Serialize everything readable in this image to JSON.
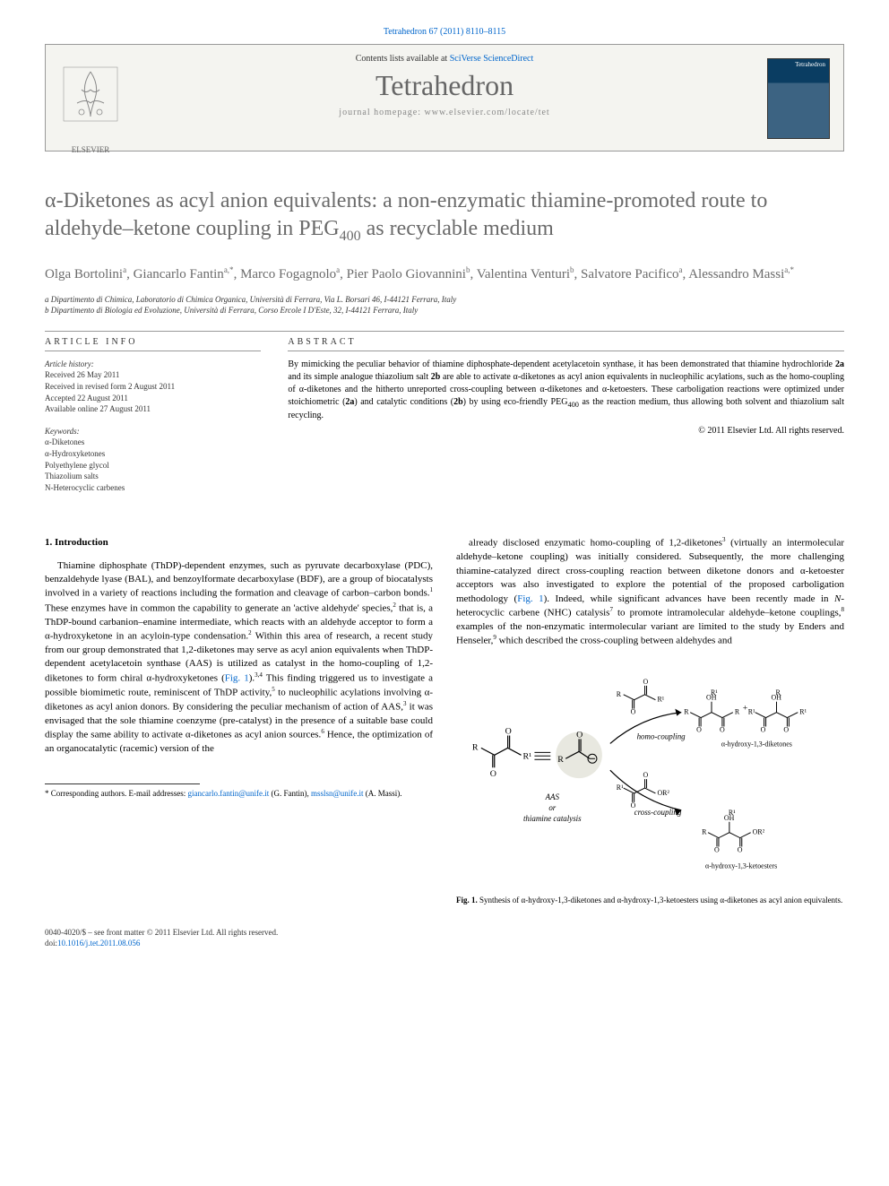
{
  "citation": "Tetrahedron 67 (2011) 8110–8115",
  "header": {
    "contents_prefix": "Contents lists available at ",
    "contents_link": "SciVerse ScienceDirect",
    "journal_name": "Tetrahedron",
    "homepage_prefix": "journal homepage: ",
    "homepage_url": "www.elsevier.com/locate/tet",
    "publisher_name": "ELSEVIER",
    "thumb_label": "Tetrahedron"
  },
  "title_html": "α-Diketones as acyl anion equivalents: a non-enzymatic thiamine-promoted route to aldehyde–ketone coupling in PEG<sub>400</sub> as recyclable medium",
  "authors_html": "Olga Bortolini<span class='sup'>a</span>, Giancarlo Fantin<span class='sup'>a,*</span>, Marco Fogagnolo<span class='sup'>a</span>, Pier Paolo Giovannini<span class='sup'>b</span>, Valentina Venturi<span class='sup'>b</span>, Salvatore Pacifico<span class='sup'>a</span>, Alessandro Massi<span class='sup'>a,*</span>",
  "affiliations": [
    "a Dipartimento di Chimica, Laboratorio di Chimica Organica, Università di Ferrara, Via L. Borsari 46, I-44121 Ferrara, Italy",
    "b Dipartimento di Biologia ed Evoluzione, Università di Ferrara, Corso Ercole I D'Este, 32, I-44121 Ferrara, Italy"
  ],
  "info_head": "ARTICLE INFO",
  "abstract_head": "ABSTRACT",
  "history": {
    "label": "Article history:",
    "lines": [
      "Received 26 May 2011",
      "Received in revised form 2 August 2011",
      "Accepted 22 August 2011",
      "Available online 27 August 2011"
    ]
  },
  "keywords": {
    "label": "Keywords:",
    "lines": [
      "α-Diketones",
      "α-Hydroxyketones",
      "Polyethylene glycol",
      "Thiazolium salts",
      "N-Heterocyclic carbenes"
    ]
  },
  "abstract_html": "By mimicking the peculiar behavior of thiamine diphosphate-dependent acetylacetoin synthase, it has been demonstrated that thiamine hydrochloride <b>2a</b> and its simple analogue thiazolium salt <b>2b</b> are able to activate α-diketones as acyl anion equivalents in nucleophilic acylations, such as the homo-coupling of α-diketones and the hitherto unreported cross-coupling between α-diketones and α-ketoesters. These carboligation reactions were optimized under stoichiometric (<b>2a</b>) and catalytic conditions (<b>2b</b>) by using eco-friendly PEG<sub>400</sub> as the reaction medium, thus allowing both solvent and thiazolium salt recycling.",
  "copyright": "© 2011 Elsevier Ltd. All rights reserved.",
  "section1_head": "1. Introduction",
  "col1_html": "Thiamine diphosphate (ThDP)-dependent enzymes, such as pyruvate decarboxylase (PDC), benzaldehyde lyase (BAL), and benzoylformate decarboxylase (BDF), are a group of biocatalysts involved in a variety of reactions including the formation and cleavage of carbon–carbon bonds.<sup>1</sup> These enzymes have in common the capability to generate an 'active aldehyde' species,<sup>2</sup> that is, a ThDP-bound carbanion–enamine intermediate, which reacts with an aldehyde acceptor to form a α-hydroxyketone in an acyloin-type condensation.<sup>2</sup> Within this area of research, a recent study from our group demonstrated that 1,2-diketones may serve as acyl anion equivalents when ThDP-dependent acetylacetoin synthase (AAS) is utilized as catalyst in the homo-coupling of 1,2-diketones to form chiral α-hydroxyketones (<a href='#'>Fig. 1</a>).<sup>3,4</sup> This finding triggered us to investigate a possible biomimetic route, reminiscent of ThDP activity,<sup>5</sup> to nucleophilic acylations involving α-diketones as acyl anion donors. By considering the peculiar mechanism of action of AAS,<sup>3</sup> it was envisaged that the sole thiamine coenzyme (pre-catalyst) in the presence of a suitable base could display the same ability to activate α-diketones as acyl anion sources.<sup>6</sup> Hence, the optimization of an organocatalytic (racemic) version of the",
  "col2_html": "already disclosed enzymatic homo-coupling of 1,2-diketones<sup>3</sup> (virtually an intermolecular aldehyde–ketone coupling) was initially considered. Subsequently, the more challenging thiamine-catalyzed direct cross-coupling reaction between diketone donors and α-ketoester acceptors was also investigated to explore the potential of the proposed carboligation methodology (<a href='#'>Fig. 1</a>). Indeed, while significant advances have been recently made in <i>N</i>-heterocyclic carbene (NHC) catalysis<sup>7</sup> to promote intramolecular aldehyde–ketone couplings,<sup>8</sup> examples of the non-enzymatic intermolecular variant are limited to the study by Enders and Henseler,<sup>9</sup> which described the cross-coupling between aldehydes and",
  "figure": {
    "caption_html": "<b>Fig. 1.</b> Synthesis of α-hydroxy-1,3-diketones and α-hydroxy-1,3-ketoesters using α-diketones as acyl anion equivalents.",
    "labels": {
      "homo": "homo-coupling",
      "cross": "cross-coupling",
      "p1": "α-hydroxy-1,3-diketones",
      "p2": "α-hydroxy-1,3-ketoesters",
      "cat": "AAS\nor\nthiamine catalysis",
      "r": "R",
      "r1": "R¹",
      "r2": "OR²",
      "o": "O",
      "oh": "OH"
    },
    "colors": {
      "line": "#000000",
      "circle_fill": "#e8e8e0",
      "shadow": "#cccccc"
    }
  },
  "footnote": {
    "marker": "*",
    "text": " Corresponding authors. E-mail addresses: ",
    "email1": "giancarlo.fantin@unife.it",
    "name1": " (G. Fantin), ",
    "email2": "msslsn@unife.it",
    "name2": " (A. Massi)."
  },
  "footer": {
    "issn_line": "0040-4020/$ – see front matter © 2011 Elsevier Ltd. All rights reserved.",
    "doi_prefix": "doi:",
    "doi": "10.1016/j.tet.2011.08.056"
  }
}
